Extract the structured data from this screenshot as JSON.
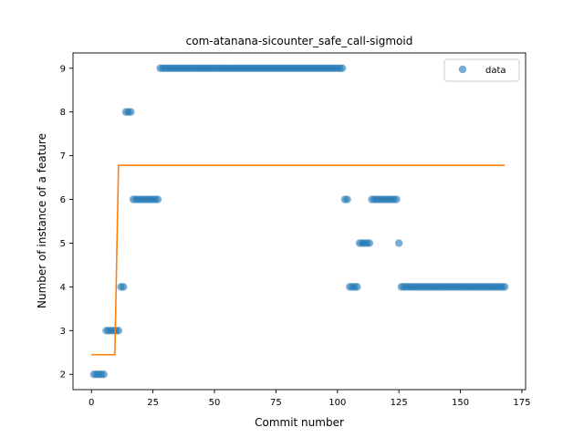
{
  "chart_data": {
    "type": "scatter",
    "title": "com-atanana-sicounter_safe_call-sigmoid",
    "xlabel": "Commit number",
    "ylabel": "Number of instance of a feature",
    "xlim": [
      -7.5,
      176.5
    ],
    "ylim": [
      1.65,
      9.35
    ],
    "xticks": [
      0,
      25,
      50,
      75,
      100,
      125,
      150,
      175
    ],
    "yticks": [
      2,
      3,
      4,
      5,
      6,
      7,
      8,
      9
    ],
    "grid": false,
    "legend": {
      "position": "top-right",
      "entries": [
        "data"
      ]
    },
    "colors": {
      "data": "#1f77b4",
      "fit": "#ff7f0e"
    },
    "series": [
      {
        "name": "data",
        "kind": "scatter",
        "points": [
          [
            1,
            2
          ],
          [
            2,
            2
          ],
          [
            3,
            2
          ],
          [
            4,
            2
          ],
          [
            5,
            2
          ],
          [
            6,
            3
          ],
          [
            7,
            3
          ],
          [
            8,
            3
          ],
          [
            9,
            3
          ],
          [
            10,
            3
          ],
          [
            11,
            3
          ],
          [
            12,
            4
          ],
          [
            13,
            4
          ],
          [
            14,
            8
          ],
          [
            15,
            8
          ],
          [
            16,
            8
          ],
          [
            17,
            6
          ],
          [
            18,
            6
          ],
          [
            19,
            6
          ],
          [
            20,
            6
          ],
          [
            21,
            6
          ],
          [
            22,
            6
          ],
          [
            23,
            6
          ],
          [
            24,
            6
          ],
          [
            25,
            6
          ],
          [
            26,
            6
          ],
          [
            27,
            6
          ],
          [
            28,
            9
          ],
          [
            29,
            9
          ],
          [
            30,
            9
          ],
          [
            31,
            9
          ],
          [
            32,
            9
          ],
          [
            33,
            9
          ],
          [
            34,
            9
          ],
          [
            35,
            9
          ],
          [
            36,
            9
          ],
          [
            37,
            9
          ],
          [
            38,
            9
          ],
          [
            39,
            9
          ],
          [
            40,
            9
          ],
          [
            41,
            9
          ],
          [
            42,
            9
          ],
          [
            43,
            9
          ],
          [
            44,
            9
          ],
          [
            45,
            9
          ],
          [
            46,
            9
          ],
          [
            47,
            9
          ],
          [
            48,
            9
          ],
          [
            49,
            9
          ],
          [
            50,
            9
          ],
          [
            51,
            9
          ],
          [
            52,
            9
          ],
          [
            53,
            9
          ],
          [
            54,
            9
          ],
          [
            55,
            9
          ],
          [
            56,
            9
          ],
          [
            57,
            9
          ],
          [
            58,
            9
          ],
          [
            59,
            9
          ],
          [
            60,
            9
          ],
          [
            61,
            9
          ],
          [
            62,
            9
          ],
          [
            63,
            9
          ],
          [
            64,
            9
          ],
          [
            65,
            9
          ],
          [
            66,
            9
          ],
          [
            67,
            9
          ],
          [
            68,
            9
          ],
          [
            69,
            9
          ],
          [
            70,
            9
          ],
          [
            71,
            9
          ],
          [
            72,
            9
          ],
          [
            73,
            9
          ],
          [
            74,
            9
          ],
          [
            75,
            9
          ],
          [
            76,
            9
          ],
          [
            77,
            9
          ],
          [
            78,
            9
          ],
          [
            79,
            9
          ],
          [
            80,
            9
          ],
          [
            81,
            9
          ],
          [
            82,
            9
          ],
          [
            83,
            9
          ],
          [
            84,
            9
          ],
          [
            85,
            9
          ],
          [
            86,
            9
          ],
          [
            87,
            9
          ],
          [
            88,
            9
          ],
          [
            89,
            9
          ],
          [
            90,
            9
          ],
          [
            91,
            9
          ],
          [
            92,
            9
          ],
          [
            93,
            9
          ],
          [
            94,
            9
          ],
          [
            95,
            9
          ],
          [
            96,
            9
          ],
          [
            97,
            9
          ],
          [
            98,
            9
          ],
          [
            99,
            9
          ],
          [
            100,
            9
          ],
          [
            101,
            9
          ],
          [
            102,
            9
          ],
          [
            103,
            6
          ],
          [
            104,
            6
          ],
          [
            105,
            4
          ],
          [
            106,
            4
          ],
          [
            107,
            4
          ],
          [
            108,
            4
          ],
          [
            109,
            5
          ],
          [
            110,
            5
          ],
          [
            111,
            5
          ],
          [
            112,
            5
          ],
          [
            113,
            5
          ],
          [
            114,
            6
          ],
          [
            115,
            6
          ],
          [
            116,
            6
          ],
          [
            117,
            6
          ],
          [
            118,
            6
          ],
          [
            119,
            6
          ],
          [
            120,
            6
          ],
          [
            121,
            6
          ],
          [
            122,
            6
          ],
          [
            123,
            6
          ],
          [
            124,
            6
          ],
          [
            125,
            5
          ],
          [
            126,
            4
          ],
          [
            127,
            4
          ],
          [
            128,
            4
          ],
          [
            129,
            4
          ],
          [
            130,
            4
          ],
          [
            131,
            4
          ],
          [
            132,
            4
          ],
          [
            133,
            4
          ],
          [
            134,
            4
          ],
          [
            135,
            4
          ],
          [
            136,
            4
          ],
          [
            137,
            4
          ],
          [
            138,
            4
          ],
          [
            139,
            4
          ],
          [
            140,
            4
          ],
          [
            141,
            4
          ],
          [
            142,
            4
          ],
          [
            143,
            4
          ],
          [
            144,
            4
          ],
          [
            145,
            4
          ],
          [
            146,
            4
          ],
          [
            147,
            4
          ],
          [
            148,
            4
          ],
          [
            149,
            4
          ],
          [
            150,
            4
          ],
          [
            151,
            4
          ],
          [
            152,
            4
          ],
          [
            153,
            4
          ],
          [
            154,
            4
          ],
          [
            155,
            4
          ],
          [
            156,
            4
          ],
          [
            157,
            4
          ],
          [
            158,
            4
          ],
          [
            159,
            4
          ],
          [
            160,
            4
          ],
          [
            161,
            4
          ],
          [
            162,
            4
          ],
          [
            163,
            4
          ],
          [
            164,
            4
          ],
          [
            165,
            4
          ],
          [
            166,
            4
          ],
          [
            167,
            4
          ],
          [
            168,
            4
          ]
        ]
      },
      {
        "kind": "line",
        "points": [
          [
            0,
            2.45
          ],
          [
            9.5,
            2.45
          ],
          [
            11,
            6.78
          ],
          [
            168,
            6.78
          ]
        ]
      }
    ]
  }
}
